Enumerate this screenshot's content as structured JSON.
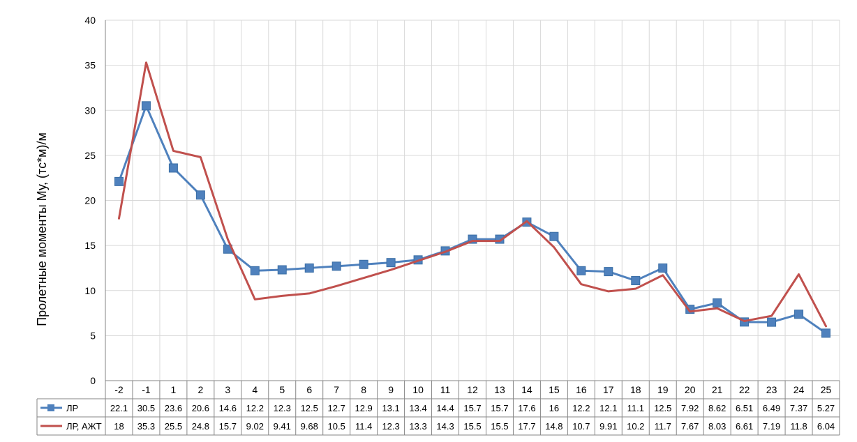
{
  "chart_data": {
    "type": "line",
    "title": "",
    "xlabel": "",
    "ylabel": "Пролетные моменты Му, (тс*м)/м",
    "ylim": [
      0,
      40
    ],
    "yticks": [
      "0",
      "5",
      "10",
      "15",
      "20",
      "25",
      "30",
      "35",
      "40"
    ],
    "grid": true,
    "legend": "data-table",
    "categories": [
      "-2",
      "-1",
      "1",
      "2",
      "3",
      "4",
      "5",
      "6",
      "7",
      "8",
      "9",
      "10",
      "11",
      "12",
      "13",
      "14",
      "15",
      "16",
      "17",
      "18",
      "19",
      "20",
      "21",
      "22",
      "23",
      "24",
      "25"
    ],
    "series": [
      {
        "name": "ЛР",
        "color": "#4F81BD",
        "marker": "square",
        "values": [
          22.1,
          30.5,
          23.6,
          20.6,
          14.6,
          12.2,
          12.3,
          12.5,
          12.7,
          12.9,
          13.1,
          13.4,
          14.4,
          15.7,
          15.7,
          17.6,
          16,
          12.2,
          12.1,
          11.1,
          12.5,
          7.92,
          8.62,
          6.51,
          6.49,
          7.37,
          5.27
        ],
        "labels": [
          "22.1",
          "30.5",
          "23.6",
          "20.6",
          "14.6",
          "12.2",
          "12.3",
          "12.5",
          "12.7",
          "12.9",
          "13.1",
          "13.4",
          "14.4",
          "15.7",
          "15.7",
          "17.6",
          "16",
          "12.2",
          "12.1",
          "11.1",
          "12.5",
          "7.92",
          "8.62",
          "6.51",
          "6.49",
          "7.37",
          "5.27"
        ]
      },
      {
        "name": "ЛР, АЖТ",
        "color": "#C0504D",
        "marker": "none",
        "values": [
          18,
          35.3,
          25.5,
          24.8,
          15.7,
          9.02,
          9.41,
          9.68,
          10.5,
          11.4,
          12.3,
          13.3,
          14.3,
          15.5,
          15.5,
          17.7,
          14.8,
          10.7,
          9.91,
          10.2,
          11.7,
          7.67,
          8.03,
          6.61,
          7.19,
          11.8,
          6.04
        ],
        "labels": [
          "18",
          "35.3",
          "25.5",
          "24.8",
          "15.7",
          "9.02",
          "9.41",
          "9.68",
          "10.5",
          "11.4",
          "12.3",
          "13.3",
          "14.3",
          "15.5",
          "15.5",
          "17.7",
          "14.8",
          "10.7",
          "9.91",
          "10.2",
          "11.7",
          "7.67",
          "8.03",
          "6.61",
          "7.19",
          "11.8",
          "6.04"
        ]
      }
    ]
  }
}
